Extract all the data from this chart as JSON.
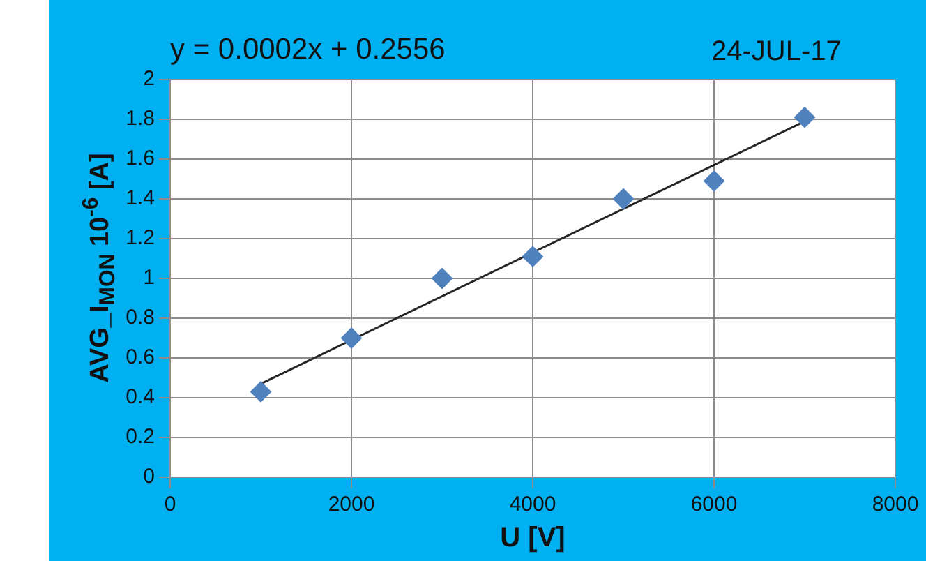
{
  "chart_data": {
    "type": "scatter",
    "xlabel": "U [V]",
    "ylabel": "AVG_I$_{MON}$ 10$^{-6}$ [A]",
    "annotations": [
      "y = 0.0002x + 0.2556",
      "24-JUL-17"
    ],
    "series": [
      {
        "type": "scatter",
        "color": "#4f81bd",
        "x": [
          1000,
          2000,
          3000,
          4000,
          5000,
          6000,
          7000
        ],
        "values": [
          0.43,
          0.7,
          1.0,
          1.11,
          1.4,
          1.49,
          1.81
        ]
      },
      {
        "type": "line",
        "color": "#262626",
        "x": [
          1000,
          7000
        ],
        "values": [
          0.47,
          1.79
        ],
        "marker": "none"
      }
    ],
    "xlim": [
      0,
      8000
    ],
    "xticks": [
      0,
      2000,
      4000,
      6000,
      8000
    ],
    "ylim": [
      0,
      2
    ],
    "yticks": [
      0,
      0.2,
      0.4,
      0.6,
      0.8,
      1,
      1.2,
      1.4,
      1.6,
      1.8,
      2
    ],
    "grid": true,
    "legend": false,
    "marker": "diamond"
  }
}
